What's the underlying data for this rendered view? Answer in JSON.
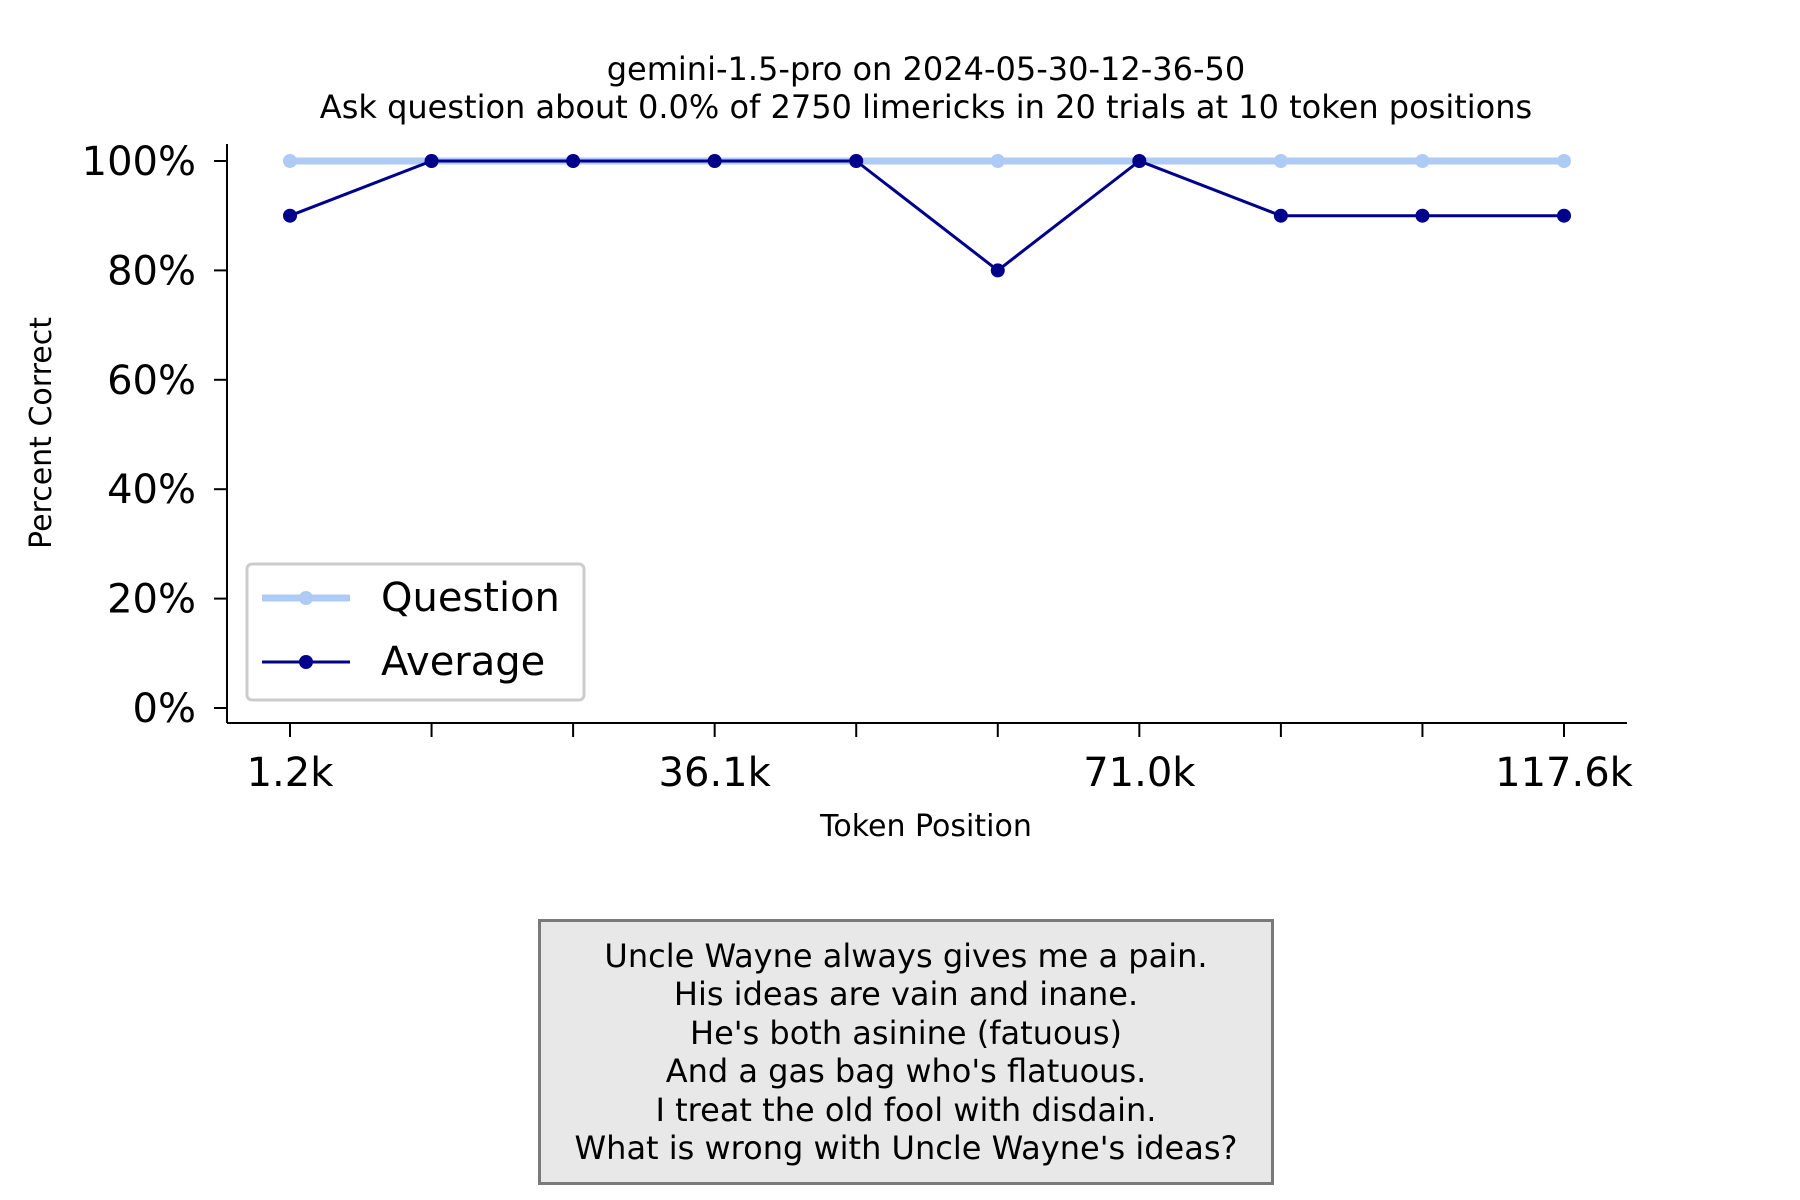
{
  "chart_data": {
    "type": "line",
    "title": "gemini-1.5-pro on 2024-05-30-12-36-50",
    "subtitle": "Ask question about 0.0% of 2750 limericks in 20 trials at 10 token positions",
    "xlabel": "Token Position",
    "ylabel": "Percent Correct",
    "ylim": [
      0,
      100
    ],
    "y_ticks": [
      "0%",
      "20%",
      "40%",
      "60%",
      "80%",
      "100%"
    ],
    "x_tick_labels": [
      "1.2k",
      "",
      "",
      "36.1k",
      "",
      "",
      "71.0k",
      "",
      "",
      "117.6k"
    ],
    "x_label_index": [
      0,
      3,
      6,
      9
    ],
    "legend_position": "lower-left",
    "grid": false,
    "series": [
      {
        "name": "Question",
        "color": "#aecbf5",
        "values": [
          100,
          100,
          100,
          100,
          100,
          100,
          100,
          100,
          100,
          100
        ]
      },
      {
        "name": "Average",
        "color": "#00008b",
        "values": [
          90,
          100,
          100,
          100,
          100,
          80,
          100,
          90,
          90,
          90
        ]
      }
    ]
  },
  "limerick": {
    "lines": [
      "Uncle Wayne always gives me a pain.",
      "His ideas are vain and inane.",
      "He's both asinine (fatuous)",
      "And a gas bag who's flatuous.",
      "I treat the old fool with disdain.",
      "What is wrong with Uncle Wayne's ideas?"
    ]
  }
}
